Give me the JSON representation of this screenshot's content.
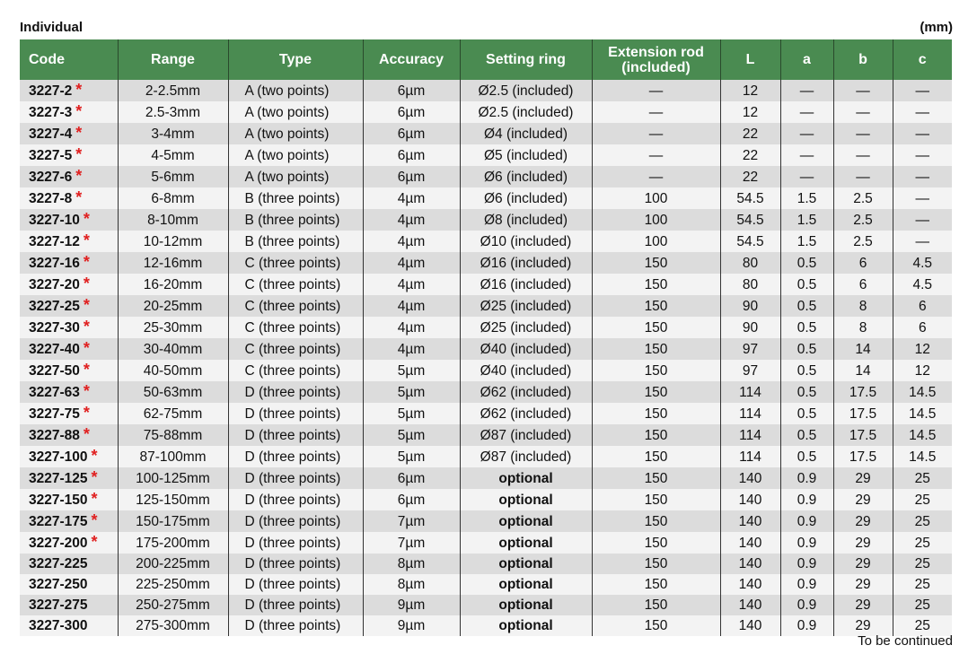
{
  "title": "Individual",
  "unit": "(mm)",
  "footer": "To be continued",
  "colors": {
    "header": "#4a8b51",
    "star": "#e02020",
    "row_odd": "#dcdcdc",
    "row_even": "#f3f3f3"
  },
  "columns": [
    "Code",
    "Range",
    "Type",
    "Accuracy",
    "Setting ring",
    "Extension rod (included)",
    "L",
    "a",
    "b",
    "c"
  ],
  "rows": [
    [
      "3227-2",
      true,
      "2-2.5mm",
      "A  (two points)",
      "6µm",
      "Ø2.5 (included)",
      "—",
      "12",
      "—",
      "—",
      "—"
    ],
    [
      "3227-3",
      true,
      "2.5-3mm",
      "A  (two points)",
      "6µm",
      "Ø2.5 (included)",
      "—",
      "12",
      "—",
      "—",
      "—"
    ],
    [
      "3227-4",
      true,
      "3-4mm",
      "A  (two points)",
      "6µm",
      "Ø4 (included)",
      "—",
      "22",
      "—",
      "—",
      "—"
    ],
    [
      "3227-5",
      true,
      "4-5mm",
      "A  (two points)",
      "6µm",
      "Ø5 (included)",
      "—",
      "22",
      "—",
      "—",
      "—"
    ],
    [
      "3227-6",
      true,
      "5-6mm",
      "A  (two points)",
      "6µm",
      "Ø6 (included)",
      "—",
      "22",
      "—",
      "—",
      "—"
    ],
    [
      "3227-8",
      true,
      "6-8mm",
      "B (three points)",
      "4µm",
      "Ø6 (included)",
      "100",
      "54.5",
      "1.5",
      "2.5",
      "—"
    ],
    [
      "3227-10",
      true,
      "8-10mm",
      "B (three points)",
      "4µm",
      "Ø8 (included)",
      "100",
      "54.5",
      "1.5",
      "2.5",
      "—"
    ],
    [
      "3227-12",
      true,
      "10-12mm",
      "B (three points)",
      "4µm",
      "Ø10 (included)",
      "100",
      "54.5",
      "1.5",
      "2.5",
      "—"
    ],
    [
      "3227-16",
      true,
      "12-16mm",
      "C (three points)",
      "4µm",
      "Ø16 (included)",
      "150",
      "80",
      "0.5",
      "6",
      "4.5"
    ],
    [
      "3227-20",
      true,
      "16-20mm",
      "C (three points)",
      "4µm",
      "Ø16 (included)",
      "150",
      "80",
      "0.5",
      "6",
      "4.5"
    ],
    [
      "3227-25",
      true,
      "20-25mm",
      "C (three points)",
      "4µm",
      "Ø25 (included)",
      "150",
      "90",
      "0.5",
      "8",
      "6"
    ],
    [
      "3227-30",
      true,
      "25-30mm",
      "C (three points)",
      "4µm",
      "Ø25 (included)",
      "150",
      "90",
      "0.5",
      "8",
      "6"
    ],
    [
      "3227-40",
      true,
      "30-40mm",
      "C (three points)",
      "4µm",
      "Ø40 (included)",
      "150",
      "97",
      "0.5",
      "14",
      "12"
    ],
    [
      "3227-50",
      true,
      "40-50mm",
      "C (three points)",
      "5µm",
      "Ø40 (included)",
      "150",
      "97",
      "0.5",
      "14",
      "12"
    ],
    [
      "3227-63",
      true,
      "50-63mm",
      "D (three points)",
      "5µm",
      "Ø62 (included)",
      "150",
      "114",
      "0.5",
      "17.5",
      "14.5"
    ],
    [
      "3227-75",
      true,
      "62-75mm",
      "D (three points)",
      "5µm",
      "Ø62 (included)",
      "150",
      "114",
      "0.5",
      "17.5",
      "14.5"
    ],
    [
      "3227-88",
      true,
      "75-88mm",
      "D (three points)",
      "5µm",
      "Ø87 (included)",
      "150",
      "114",
      "0.5",
      "17.5",
      "14.5"
    ],
    [
      "3227-100",
      true,
      "87-100mm",
      "D (three points)",
      "5µm",
      "Ø87 (included)",
      "150",
      "114",
      "0.5",
      "17.5",
      "14.5"
    ],
    [
      "3227-125",
      true,
      "100-125mm",
      "D (three points)",
      "6µm",
      "optional",
      "150",
      "140",
      "0.9",
      "29",
      "25"
    ],
    [
      "3227-150",
      true,
      "125-150mm",
      "D (three points)",
      "6µm",
      "optional",
      "150",
      "140",
      "0.9",
      "29",
      "25"
    ],
    [
      "3227-175",
      true,
      "150-175mm",
      "D (three points)",
      "7µm",
      "optional",
      "150",
      "140",
      "0.9",
      "29",
      "25"
    ],
    [
      "3227-200",
      true,
      "175-200mm",
      "D (three points)",
      "7µm",
      "optional",
      "150",
      "140",
      "0.9",
      "29",
      "25"
    ],
    [
      "3227-225",
      false,
      "200-225mm",
      "D (three points)",
      "8µm",
      "optional",
      "150",
      "140",
      "0.9",
      "29",
      "25"
    ],
    [
      "3227-250",
      false,
      "225-250mm",
      "D (three points)",
      "8µm",
      "optional",
      "150",
      "140",
      "0.9",
      "29",
      "25"
    ],
    [
      "3227-275",
      false,
      "250-275mm",
      "D (three points)",
      "9µm",
      "optional",
      "150",
      "140",
      "0.9",
      "29",
      "25"
    ],
    [
      "3227-300",
      false,
      "275-300mm",
      "D (three points)",
      "9µm",
      "optional",
      "150",
      "140",
      "0.9",
      "29",
      "25"
    ]
  ]
}
